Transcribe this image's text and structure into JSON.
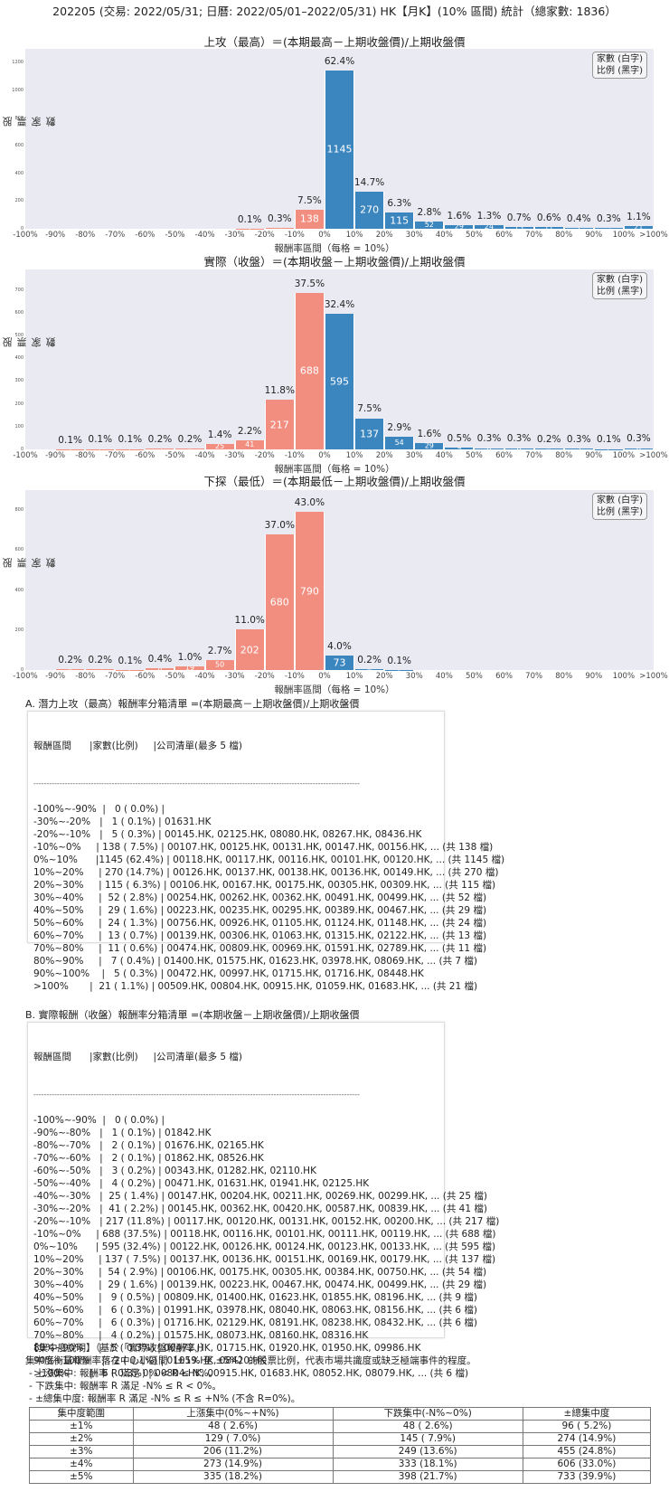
{
  "title": "202205 (交易: 2022/05/31; 日曆: 2022/05/01–2022/05/31) HK【月K】(10% 區間) 統計（總家數: 1836）",
  "legend": {
    "line1": "家數 (白字)",
    "line2": "比例 (黑字)"
  },
  "colors": {
    "negative": "#f28e80",
    "positive": "#3c86c0",
    "plot_bg": "#eaeaf2"
  },
  "chart_data": [
    {
      "type": "bar",
      "title": "上攻（最高）＝(本期最高－上期收盤價)/上期收盤價",
      "xlabel": "報酬率區間（每格 = 10%）",
      "ylabel": "股票家數",
      "ylim": [
        0,
        1300
      ],
      "yticks": [
        0,
        200,
        400,
        600,
        800,
        1000,
        1200
      ],
      "categories": [
        "-100%",
        "-90%",
        "-80%",
        "-70%",
        "-60%",
        "-50%",
        "-40%",
        "-30%",
        "-20%",
        "-10%",
        "0%",
        "10%",
        "20%",
        "30%",
        "40%",
        "50%",
        "60%",
        "70%",
        "80%",
        "90%",
        "100%"
      ],
      "xtick_labels": [
        "-100%",
        "-90%",
        "-80%",
        "-70%",
        "-60%",
        "-50%",
        "-40%",
        "-30%",
        "-20%",
        "-10%",
        "0%",
        "10%",
        "20%",
        "30%",
        "40%",
        "50%",
        "60%",
        "70%",
        "80%",
        "90%",
        "100%",
        ">100%"
      ],
      "values": [
        0,
        0,
        0,
        0,
        0,
        0,
        0,
        1,
        5,
        138,
        1145,
        270,
        115,
        52,
        29,
        24,
        13,
        11,
        7,
        5,
        21
      ],
      "pct_labels": [
        "",
        "",
        "",
        "",
        "",
        "",
        "",
        "0.1%",
        "0.3%",
        "7.5%",
        "62.4%",
        "14.7%",
        "6.3%",
        "2.8%",
        "1.6%",
        "1.3%",
        "0.7%",
        "0.6%",
        "0.4%",
        "0.3%",
        "1.1%"
      ]
    },
    {
      "type": "bar",
      "title": "實際（收盤）＝(本期收盤－上期收盤價)/上期收盤價",
      "xlabel": "報酬率區間（每格 = 10%）",
      "ylabel": "股票家數",
      "ylim": [
        0,
        790
      ],
      "yticks": [
        0,
        100,
        200,
        300,
        400,
        500,
        600,
        700
      ],
      "categories": [
        "-100%",
        "-90%",
        "-80%",
        "-70%",
        "-60%",
        "-50%",
        "-40%",
        "-30%",
        "-20%",
        "-10%",
        "0%",
        "10%",
        "20%",
        "30%",
        "40%",
        "50%",
        "60%",
        "70%",
        "80%",
        "90%",
        "100%"
      ],
      "xtick_labels": [
        "-100%",
        "-90%",
        "-80%",
        "-70%",
        "-60%",
        "-50%",
        "-40%",
        "-30%",
        "-20%",
        "-10%",
        "0%",
        "10%",
        "20%",
        "30%",
        "40%",
        "50%",
        "60%",
        "70%",
        "80%",
        "90%",
        "100%",
        ">100%"
      ],
      "values": [
        0,
        1,
        2,
        2,
        3,
        4,
        25,
        41,
        217,
        688,
        595,
        137,
        54,
        29,
        9,
        6,
        6,
        4,
        5,
        2,
        6
      ],
      "pct_labels": [
        "",
        "0.1%",
        "0.1%",
        "0.1%",
        "0.2%",
        "0.2%",
        "1.4%",
        "2.2%",
        "11.8%",
        "37.5%",
        "32.4%",
        "7.5%",
        "2.9%",
        "1.6%",
        "0.5%",
        "0.3%",
        "0.3%",
        "0.2%",
        "0.3%",
        "0.1%",
        "0.3%"
      ]
    },
    {
      "type": "bar",
      "title": "下探（最低）＝(本期最低－上期收盤價)/上期收盤價",
      "xlabel": "報酬率區間（每格 = 10%）",
      "ylabel": "股票家數",
      "ylim": [
        0,
        900
      ],
      "yticks": [
        0,
        200,
        400,
        600,
        800
      ],
      "categories": [
        "-100%",
        "-90%",
        "-80%",
        "-70%",
        "-60%",
        "-50%",
        "-40%",
        "-30%",
        "-20%",
        "-10%",
        "0%",
        "10%",
        "20%",
        "30%",
        "40%",
        "50%",
        "60%",
        "70%",
        "80%",
        "90%",
        "100%"
      ],
      "xtick_labels": [
        "-100%",
        "-90%",
        "-80%",
        "-70%",
        "-60%",
        "-50%",
        "-40%",
        "-30%",
        "-20%",
        "-10%",
        "0%",
        "10%",
        "20%",
        "30%",
        "40%",
        "50%",
        "60%",
        "70%",
        "80%",
        "90%",
        "100%",
        ">100%"
      ],
      "values": [
        0,
        4,
        3,
        2,
        8,
        19,
        50,
        202,
        680,
        790,
        73,
        4,
        2,
        0,
        0,
        0,
        0,
        0,
        0,
        0,
        0
      ],
      "pct_labels": [
        "",
        "0.2%",
        "0.2%",
        "0.1%",
        "0.4%",
        "1.0%",
        "2.7%",
        "11.0%",
        "37.0%",
        "43.0%",
        "4.0%",
        "0.2%",
        "0.1%",
        "",
        "",
        "",
        "",
        "",
        "",
        "",
        ""
      ]
    }
  ],
  "section_a": {
    "title": "A. 潛力上攻（最高）報酬率分箱清單 =(本期最高－上期收盤價)/上期收盤價",
    "header": "報酬區間      |家數(比例)     |公司清單(最多 5 檔)",
    "separator": "-----------------------------------------------------------------------------------------------------------------------------",
    "rows": [
      "-100%~-90%  |   0 ( 0.0%) |",
      "-30%~-20%   |   1 ( 0.1%) | 01631.HK",
      "-20%~-10%   |   5 ( 0.3%) | 00145.HK, 02125.HK, 08080.HK, 08267.HK, 08436.HK",
      "-10%~0%     | 138 ( 7.5%) | 00107.HK, 00125.HK, 00131.HK, 00147.HK, 00156.HK, ... (共 138 檔)",
      "0%~10%      |1145 (62.4%) | 00118.HK, 00117.HK, 00116.HK, 00101.HK, 00120.HK, ... (共 1145 檔)",
      "10%~20%     | 270 (14.7%) | 00126.HK, 00137.HK, 00138.HK, 00136.HK, 00149.HK, ... (共 270 檔)",
      "20%~30%     | 115 ( 6.3%) | 00106.HK, 00167.HK, 00175.HK, 00305.HK, 00309.HK, ... (共 115 檔)",
      "30%~40%     |  52 ( 2.8%) | 00254.HK, 00262.HK, 00362.HK, 00491.HK, 00499.HK, ... (共 52 檔)",
      "40%~50%     |  29 ( 1.6%) | 00223.HK, 00235.HK, 00295.HK, 00389.HK, 00467.HK, ... (共 29 檔)",
      "50%~60%     |  24 ( 1.3%) | 00756.HK, 00926.HK, 01105.HK, 01124.HK, 01148.HK, ... (共 24 檔)",
      "60%~70%     |  13 ( 0.7%) | 00139.HK, 00306.HK, 01063.HK, 01315.HK, 02122.HK, ... (共 13 檔)",
      "70%~80%     |  11 ( 0.6%) | 00474.HK, 00809.HK, 00969.HK, 01591.HK, 02789.HK, ... (共 11 檔)",
      "80%~90%     |   7 ( 0.4%) | 01400.HK, 01575.HK, 01623.HK, 03978.HK, 08069.HK, ... (共 7 檔)",
      "90%~100%    |   5 ( 0.3%) | 00472.HK, 00997.HK, 01715.HK, 01716.HK, 08448.HK",
      ">100%       |  21 ( 1.1%) | 00509.HK, 00804.HK, 00915.HK, 01059.HK, 01683.HK, ... (共 21 檔)"
    ]
  },
  "section_b": {
    "title": "B. 實際報酬（收盤）報酬率分箱清單 =(本期收盤－上期收盤價)/上期收盤價",
    "header": "報酬區間      |家數(比例)     |公司清單(最多 5 檔)",
    "separator": "-----------------------------------------------------------------------------------------------------------------------------",
    "rows": [
      "-100%~-90%  |   0 ( 0.0%) |",
      "-90%~-80%   |   1 ( 0.1%) | 01842.HK",
      "-80%~-70%   |   2 ( 0.1%) | 01676.HK, 02165.HK",
      "-70%~-60%   |   2 ( 0.1%) | 01862.HK, 08526.HK",
      "-60%~-50%   |   3 ( 0.2%) | 00343.HK, 01282.HK, 02110.HK",
      "-50%~-40%   |   4 ( 0.2%) | 00471.HK, 01631.HK, 01941.HK, 02125.HK",
      "-40%~-30%   |  25 ( 1.4%) | 00147.HK, 00204.HK, 00211.HK, 00269.HK, 00299.HK, ... (共 25 檔)",
      "-30%~-20%   |  41 ( 2.2%) | 00145.HK, 00362.HK, 00420.HK, 00587.HK, 00839.HK, ... (共 41 檔)",
      "-20%~-10%   | 217 (11.8%) | 00117.HK, 00120.HK, 00131.HK, 00152.HK, 00200.HK, ... (共 217 檔)",
      "-10%~0%     | 688 (37.5%) | 00118.HK, 00116.HK, 00101.HK, 00111.HK, 00119.HK, ... (共 688 檔)",
      "0%~10%      | 595 (32.4%) | 00122.HK, 00126.HK, 00124.HK, 00123.HK, 00133.HK, ... (共 595 檔)",
      "10%~20%     | 137 ( 7.5%) | 00137.HK, 00136.HK, 00151.HK, 00169.HK, 00179.HK, ... (共 137 檔)",
      "20%~30%     |  54 ( 2.9%) | 00106.HK, 00175.HK, 00305.HK, 00384.HK, 00750.HK, ... (共 54 檔)",
      "30%~40%     |  29 ( 1.6%) | 00139.HK, 00223.HK, 00467.HK, 00474.HK, 00499.HK, ... (共 29 檔)",
      "40%~50%     |   9 ( 0.5%) | 00809.HK, 01400.HK, 01623.HK, 01855.HK, 08196.HK, ... (共 9 檔)",
      "50%~60%     |   6 ( 0.3%) | 01991.HK, 03978.HK, 08040.HK, 08063.HK, 08156.HK, ... (共 6 檔)",
      "60%~70%     |   6 ( 0.3%) | 01716.HK, 02129.HK, 08191.HK, 08238.HK, 08432.HK, ... (共 6 檔)",
      "70%~80%     |   4 ( 0.2%) | 01575.HK, 08073.HK, 08160.HK, 08316.HK",
      "80%~90%     |   5 ( 0.3%) | 00472.HK, 01715.HK, 01920.HK, 01950.HK, 09986.HK",
      "90%~100%    |   2 ( 0.1%) | 01059.HK, 08420.HK",
      ">100%       |   6 ( 0.3%) | 00804.HK, 00915.HK, 01683.HK, 08052.HK, 08079.HK, ... (共 6 檔)"
    ]
  },
  "concentration": {
    "title": "【集中度說明】（基於「實際收盤報酬率」）",
    "desc": "集中度衡量報酬率落在中心小區間（±1% 至 ±5%）的股票比例，代表市場共識度或缺乏極端事件的程度。",
    "bullets": [
      "- 上漲集中: 報酬率 R 滿足 0% < R ≤ N%。",
      "- 下跌集中: 報酬率 R 滿足 -N% ≤ R < 0%。",
      "- ±總集中度: 報酬率 R 滿足 -N% ≤ R ≤ +N% (不含 R=0%)。"
    ],
    "headers": [
      "集中度範圍",
      "上漲集中(0%~+N%)",
      "下跌集中(-N%~0%)",
      "±總集中度"
    ],
    "rows": [
      [
        "±1%",
        "48 ( 2.6%)",
        "48 ( 2.6%)",
        "96 ( 5.2%)"
      ],
      [
        "±2%",
        "129 ( 7.0%)",
        "145 ( 7.9%)",
        "274 (14.9%)"
      ],
      [
        "±3%",
        "206 (11.2%)",
        "249 (13.6%)",
        "455 (24.8%)"
      ],
      [
        "±4%",
        "273 (14.9%)",
        "333 (18.1%)",
        "606 (33.0%)"
      ],
      [
        "±5%",
        "335 (18.2%)",
        "398 (21.7%)",
        "733 (39.9%)"
      ]
    ]
  }
}
